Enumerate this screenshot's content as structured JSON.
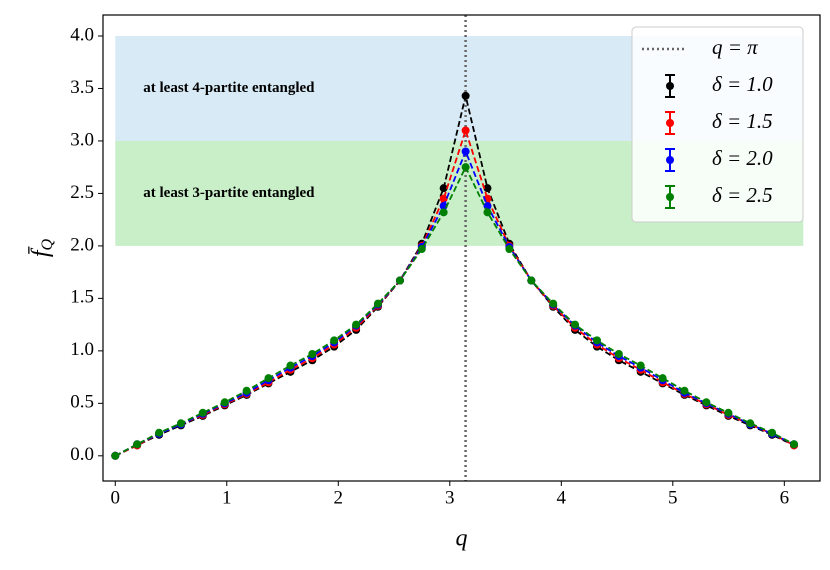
{
  "chart_data": {
    "type": "line",
    "xlabel": "q",
    "ylabel": {
      "main": "f̄",
      "sub": "Q"
    },
    "x": [
      0,
      0.196,
      0.393,
      0.589,
      0.785,
      0.982,
      1.178,
      1.374,
      1.571,
      1.767,
      1.963,
      2.16,
      2.356,
      2.553,
      2.749,
      2.945,
      3.142,
      3.338,
      3.534,
      3.731,
      3.927,
      4.123,
      4.32,
      4.516,
      4.712,
      4.909,
      5.105,
      5.301,
      5.498,
      5.694,
      5.89,
      6.087
    ],
    "series": [
      {
        "name": "δ = 1.0",
        "color": "#000000",
        "values": [
          0,
          0.1,
          0.2,
          0.29,
          0.38,
          0.48,
          0.58,
          0.69,
          0.8,
          0.91,
          1.04,
          1.2,
          1.42,
          1.67,
          2.02,
          2.55,
          3.43,
          2.55,
          2.02,
          1.67,
          1.42,
          1.2,
          1.04,
          0.91,
          0.8,
          0.69,
          0.58,
          0.48,
          0.38,
          0.29,
          0.2,
          0.1
        ]
      },
      {
        "name": "δ = 1.5",
        "color": "#ff0000",
        "values": [
          0,
          0.1,
          0.21,
          0.3,
          0.39,
          0.49,
          0.59,
          0.7,
          0.82,
          0.93,
          1.06,
          1.22,
          1.43,
          1.67,
          2.0,
          2.45,
          3.1,
          2.45,
          2.0,
          1.67,
          1.43,
          1.22,
          1.06,
          0.93,
          0.82,
          0.7,
          0.59,
          0.49,
          0.39,
          0.3,
          0.21,
          0.1
        ]
      },
      {
        "name": "δ = 2.0",
        "color": "#0000ff",
        "values": [
          0,
          0.11,
          0.21,
          0.3,
          0.4,
          0.5,
          0.6,
          0.72,
          0.84,
          0.95,
          1.08,
          1.24,
          1.44,
          1.67,
          1.99,
          2.38,
          2.9,
          2.38,
          1.99,
          1.67,
          1.44,
          1.24,
          1.08,
          0.95,
          0.84,
          0.72,
          0.6,
          0.5,
          0.4,
          0.3,
          0.21,
          0.11
        ]
      },
      {
        "name": "δ = 2.5",
        "color": "#008000",
        "values": [
          0,
          0.11,
          0.22,
          0.31,
          0.41,
          0.51,
          0.62,
          0.74,
          0.86,
          0.97,
          1.1,
          1.25,
          1.45,
          1.67,
          1.97,
          2.32,
          2.75,
          2.32,
          1.97,
          1.67,
          1.45,
          1.25,
          1.1,
          0.97,
          0.86,
          0.74,
          0.62,
          0.51,
          0.41,
          0.31,
          0.22,
          0.11
        ]
      }
    ],
    "vline": {
      "x": 3.14159,
      "label": "q = π",
      "color": "#666666"
    },
    "bands": [
      {
        "label": "at least 4-partite entangled",
        "ymin": 3,
        "ymax": 4,
        "xmin": 0,
        "xmax": 6.17,
        "color": "#d8eaf5"
      },
      {
        "label": "at least 3-partite entangled",
        "ymin": 2,
        "ymax": 3,
        "xmin": 0,
        "xmax": 6.17,
        "color": "#c9efc9"
      }
    ],
    "xlim": [
      -0.11,
      6.32
    ],
    "ylim": [
      -0.24,
      4.2
    ],
    "xticks": [
      0,
      1,
      2,
      3,
      4,
      5,
      6
    ],
    "yticks": [
      {
        "value": 0,
        "label": "0.0"
      },
      0.5,
      {
        "value": 1,
        "label": "1.0"
      },
      1.5,
      {
        "value": 2,
        "label": "2.0"
      },
      2.5,
      {
        "value": 3,
        "label": "3.0"
      },
      3.5,
      {
        "value": 4,
        "label": "4.0"
      }
    ],
    "legend": "upper right"
  }
}
